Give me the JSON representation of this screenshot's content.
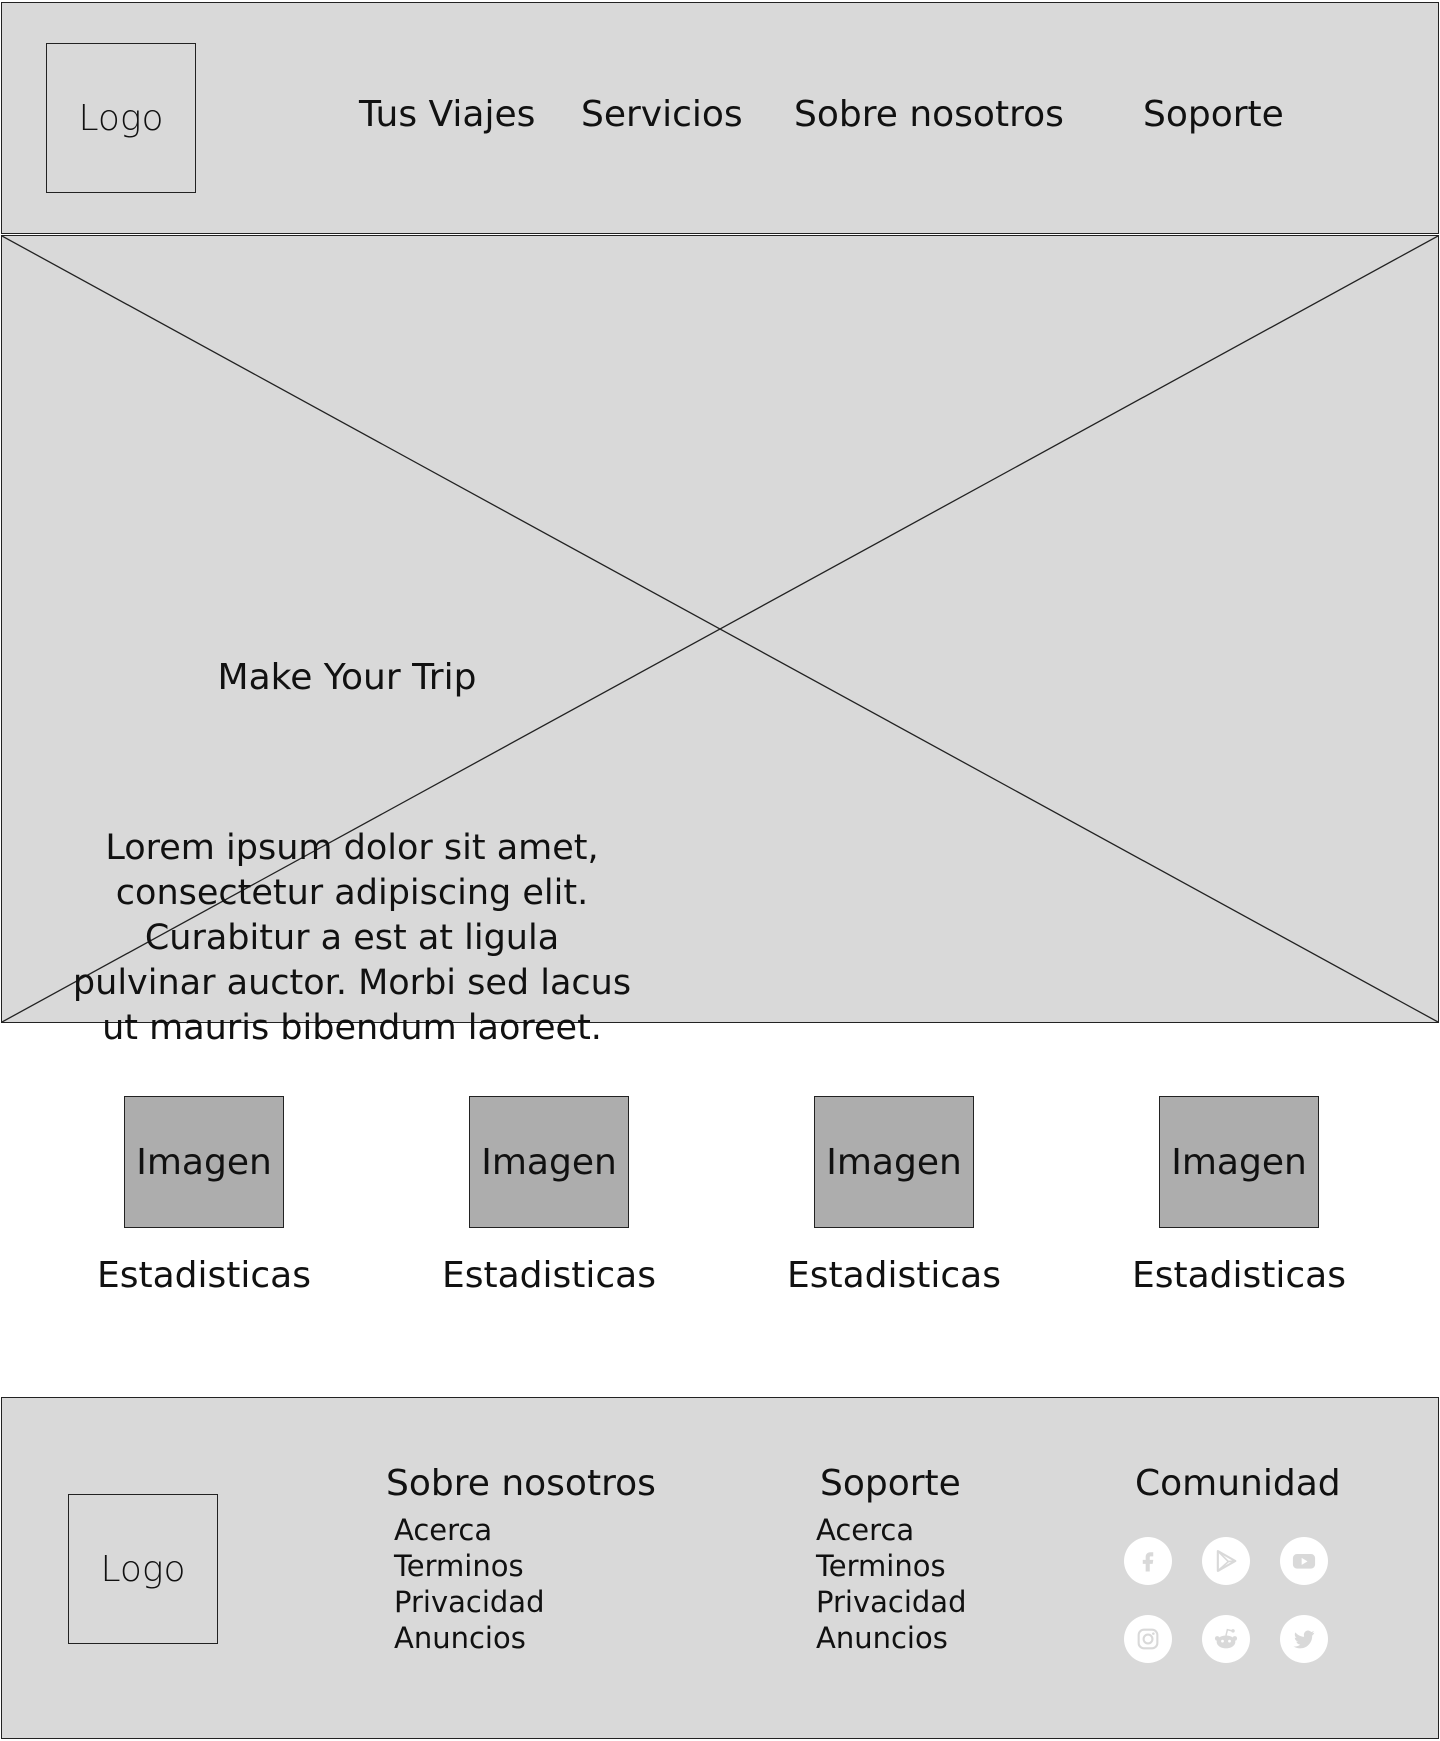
{
  "header": {
    "logo": "Logo",
    "nav": [
      "Tus Viajes",
      "Servicios",
      "Sobre nosotros",
      "Soporte"
    ]
  },
  "hero": {
    "title": "Make Your Trip",
    "text": "Lorem ipsum dolor sit amet, consectetur adipiscing elit. Curabitur a est at ligula pulvinar auctor. Morbi sed lacus ut mauris bibendum laoreet."
  },
  "stats": [
    {
      "image": "Imagen",
      "label": "Estadisticas"
    },
    {
      "image": "Imagen",
      "label": "Estadisticas"
    },
    {
      "image": "Imagen",
      "label": "Estadisticas"
    },
    {
      "image": "Imagen",
      "label": "Estadisticas"
    }
  ],
  "footer": {
    "logo": "Logo",
    "about": {
      "title": "Sobre nosotros",
      "links": [
        "Acerca",
        "Terminos",
        "Privacidad",
        "Anuncios"
      ]
    },
    "support": {
      "title": "Soporte",
      "links": [
        "Acerca",
        "Terminos",
        "Privacidad",
        "Anuncios"
      ]
    },
    "community": {
      "title": "Comunidad",
      "icons": [
        "facebook-icon",
        "play-store-icon",
        "youtube-icon",
        "instagram-icon",
        "reddit-icon",
        "twitter-icon"
      ]
    }
  },
  "colors": {
    "panel": "#d9d9d9",
    "image_placeholder": "#adadad",
    "border": "#222222",
    "social_icon_bg": "#ffffff",
    "social_icon_glyph": "#d9d9d9"
  }
}
